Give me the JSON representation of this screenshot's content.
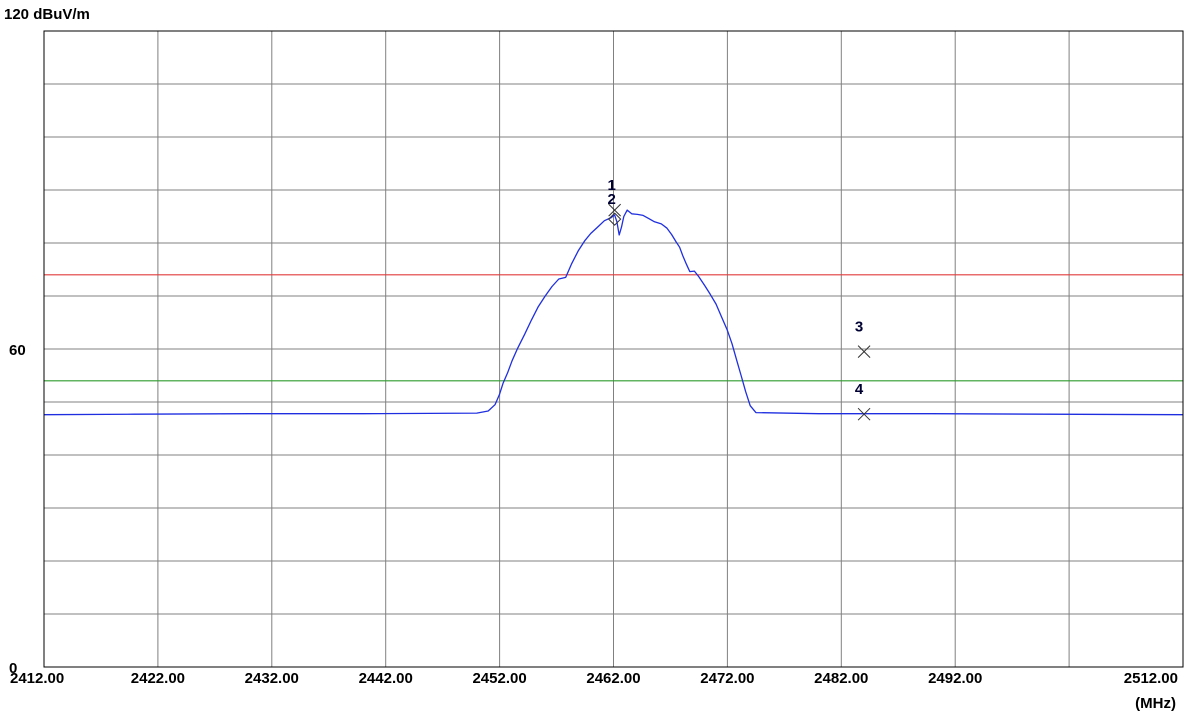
{
  "chart_data": {
    "type": "line",
    "y_unit_label": "120 dBuV/m",
    "x_unit_label": "(MHz)",
    "xlim": [
      2412,
      2512
    ],
    "ylim": [
      0,
      120
    ],
    "grid": true,
    "x_ticks": [
      {
        "value": 2412,
        "label": "2412.00"
      },
      {
        "value": 2422,
        "label": "2422.00"
      },
      {
        "value": 2432,
        "label": "2432.00"
      },
      {
        "value": 2442,
        "label": "2442.00"
      },
      {
        "value": 2452,
        "label": "2452.00"
      },
      {
        "value": 2462,
        "label": "2462.00"
      },
      {
        "value": 2472,
        "label": "2472.00"
      },
      {
        "value": 2482,
        "label": "2482.00"
      },
      {
        "value": 2492,
        "label": "2492.00"
      },
      {
        "value": 2512,
        "label": "2512.00"
      }
    ],
    "y_ticks": [
      {
        "value": 60,
        "label": "60"
      },
      {
        "value": 0,
        "label": "0"
      }
    ],
    "limit_lines": [
      {
        "value": 74,
        "color": "#e23b3b"
      },
      {
        "value": 54,
        "color": "#2e9a2e"
      }
    ],
    "series": [
      {
        "color": "#1f2fe0",
        "points": [
          [
            2412,
            47.6
          ],
          [
            2420,
            47.7
          ],
          [
            2430,
            47.8
          ],
          [
            2440,
            47.8
          ],
          [
            2450,
            47.9
          ],
          [
            2451,
            48.3
          ],
          [
            2451.6,
            49.5
          ],
          [
            2452,
            51.5
          ],
          [
            2452.3,
            53.5
          ],
          [
            2452.7,
            55.5
          ],
          [
            2453.1,
            57.8
          ],
          [
            2453.6,
            60.2
          ],
          [
            2454.2,
            62.8
          ],
          [
            2454.8,
            65.5
          ],
          [
            2455.4,
            68
          ],
          [
            2456,
            70
          ],
          [
            2456.6,
            71.8
          ],
          [
            2457.2,
            73.2
          ],
          [
            2457.8,
            73.5
          ],
          [
            2458.3,
            76
          ],
          [
            2458.9,
            78.5
          ],
          [
            2459.5,
            80.5
          ],
          [
            2460,
            81.8
          ],
          [
            2460.6,
            83
          ],
          [
            2461.2,
            84.2
          ],
          [
            2461.8,
            84.8
          ],
          [
            2462.1,
            85.3
          ],
          [
            2462.3,
            84
          ],
          [
            2462.5,
            81.5
          ],
          [
            2462.7,
            83
          ],
          [
            2462.9,
            85
          ],
          [
            2463.2,
            86.2
          ],
          [
            2463.6,
            85.5
          ],
          [
            2464.1,
            85.4
          ],
          [
            2464.6,
            85.2
          ],
          [
            2465.1,
            84.6
          ],
          [
            2465.6,
            84
          ],
          [
            2466.2,
            83.6
          ],
          [
            2466.7,
            82.8
          ],
          [
            2467.1,
            81.6
          ],
          [
            2467.5,
            80.2
          ],
          [
            2467.8,
            79.2
          ],
          [
            2468.1,
            77.5
          ],
          [
            2468.4,
            76
          ],
          [
            2468.7,
            74.6
          ],
          [
            2469.1,
            74.7
          ],
          [
            2469.5,
            73.6
          ],
          [
            2470,
            72
          ],
          [
            2470.5,
            70.3
          ],
          [
            2471,
            68.5
          ],
          [
            2471.5,
            66
          ],
          [
            2472,
            63.5
          ],
          [
            2472.4,
            61
          ],
          [
            2472.8,
            58
          ],
          [
            2473.2,
            55
          ],
          [
            2473.6,
            52
          ],
          [
            2474,
            49.3
          ],
          [
            2474.5,
            48
          ],
          [
            2480,
            47.8
          ],
          [
            2490,
            47.8
          ],
          [
            2500,
            47.7
          ],
          [
            2512,
            47.6
          ]
        ]
      }
    ],
    "markers": [
      {
        "label": "1",
        "x": 2462.1,
        "y": 86.2,
        "symbol": "x"
      },
      {
        "label": "2",
        "x": 2462.1,
        "y": 84.5,
        "symbol": "diamond"
      },
      {
        "label": "3",
        "x": 2484,
        "y": 59.5,
        "symbol": "x"
      },
      {
        "label": "4",
        "x": 2484,
        "y": 47.7,
        "symbol": "x"
      }
    ]
  }
}
